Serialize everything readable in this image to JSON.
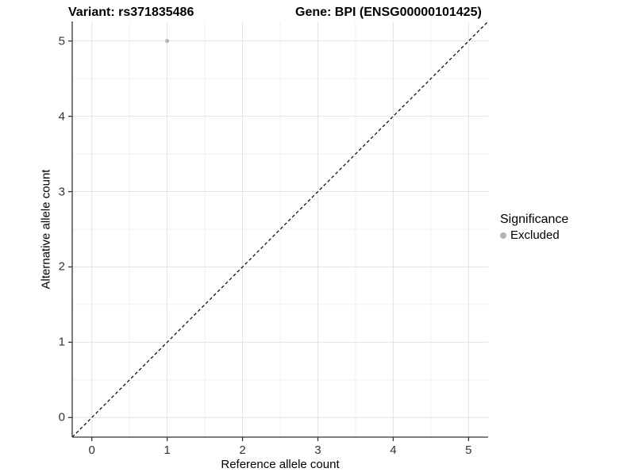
{
  "titles": {
    "left": "Variant: rs371835486",
    "right": "Gene: BPI (ENSG00000101425)"
  },
  "chart_data": {
    "type": "scatter",
    "title": "Variant: rs371835486   Gene: BPI (ENSG00000101425)",
    "xlabel": "Reference allele count",
    "ylabel": "Alternative allele count",
    "xlim": [
      -0.26,
      5.26
    ],
    "ylim": [
      -0.26,
      5.26
    ],
    "x_ticks": [
      0,
      1,
      2,
      3,
      4,
      5
    ],
    "y_ticks": [
      0,
      1,
      2,
      3,
      4,
      5
    ],
    "minor_step": 0.5,
    "grid": true,
    "series": [
      {
        "name": "Excluded",
        "color": "#b3b3b3",
        "points": [
          {
            "x": 1,
            "y": 5
          }
        ],
        "point_radius": 2.5
      }
    ],
    "reference_line": {
      "type": "identity",
      "label": "y = x",
      "style": "dashed",
      "color": "#000000"
    },
    "legend": {
      "title": "Significance",
      "position": "right",
      "items": [
        {
          "label": "Excluded",
          "color": "#b3b3b3",
          "marker": "circle"
        }
      ]
    }
  },
  "colors": {
    "background": "#ffffff",
    "grid_major": "#e3e3e3",
    "grid_minor": "#f0f0f0",
    "axis_line": "#333333",
    "tick": "#333333",
    "tick_label": "#333333",
    "point": "#b3b3b3"
  }
}
